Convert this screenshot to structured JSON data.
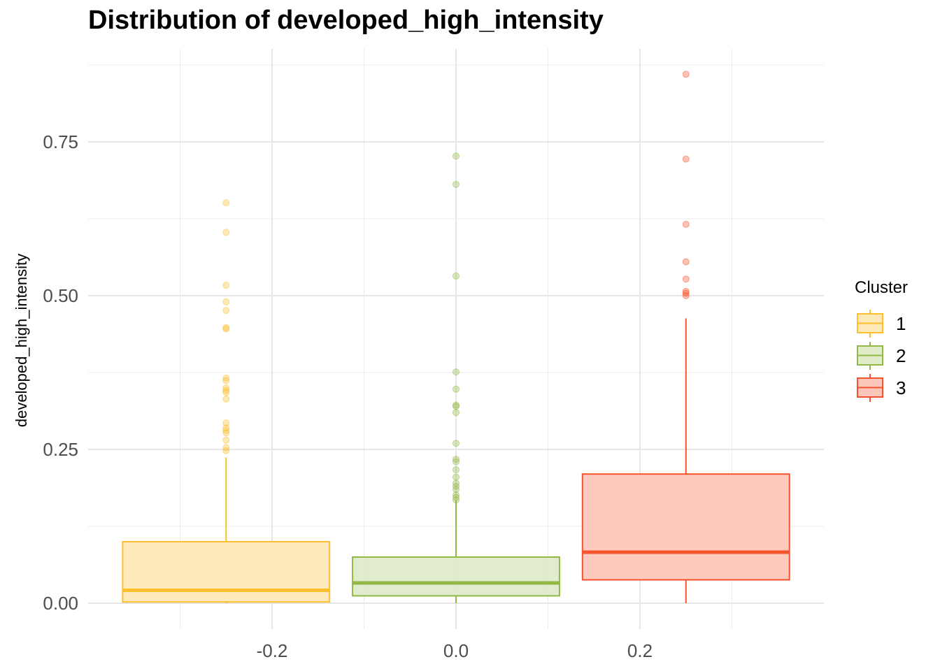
{
  "chart_data": {
    "type": "boxplot",
    "title": "Distribution of developed_high_intensity",
    "xlabel": "",
    "ylabel": "developed_high_intensity",
    "xlim": [
      -0.4,
      0.4
    ],
    "ylim": [
      0,
      0.9
    ],
    "x_ticks": [
      -0.2,
      0.0,
      0.2
    ],
    "x_tick_labels": [
      "-0.2",
      "0.0",
      "0.2"
    ],
    "y_ticks": [
      0.0,
      0.25,
      0.5,
      0.75
    ],
    "y_tick_labels": [
      "0.00",
      "0.25",
      "0.50",
      "0.75"
    ],
    "grid": true,
    "legend": {
      "title": "Cluster",
      "position": "right"
    },
    "series": [
      {
        "name": "1",
        "color": "#FDBF2D",
        "fill": "#FEE9B8",
        "x_center": -0.25,
        "box_width": 0.225,
        "whisker_low": 0.0,
        "q1": 0.002,
        "median": 0.021,
        "q3": 0.1,
        "whisker_high": 0.237,
        "outliers": [
          0.651,
          0.603,
          0.517,
          0.49,
          0.476,
          0.448,
          0.446,
          0.366,
          0.362,
          0.35,
          0.346,
          0.343,
          0.332,
          0.293,
          0.285,
          0.281,
          0.277,
          0.265,
          0.253,
          0.248
        ]
      },
      {
        "name": "2",
        "color": "#92B946",
        "fill": "#DFEBC9",
        "x_center": 0.0,
        "box_width": 0.225,
        "whisker_low": 0.0,
        "q1": 0.012,
        "median": 0.033,
        "q3": 0.075,
        "whisker_high": 0.167,
        "outliers": [
          0.727,
          0.681,
          0.532,
          0.376,
          0.348,
          0.322,
          0.32,
          0.31,
          0.26,
          0.234,
          0.23,
          0.217,
          0.205,
          0.195,
          0.19,
          0.185,
          0.176,
          0.172,
          0.168
        ]
      },
      {
        "name": "3",
        "color": "#F4532B",
        "fill": "#FEC7BB",
        "x_center": 0.25,
        "box_width": 0.225,
        "whisker_low": 0.0,
        "q1": 0.038,
        "median": 0.083,
        "q3": 0.21,
        "whisker_high": 0.463,
        "outliers": [
          0.86,
          0.722,
          0.616,
          0.555,
          0.527,
          0.507,
          0.504,
          0.5
        ]
      }
    ]
  }
}
